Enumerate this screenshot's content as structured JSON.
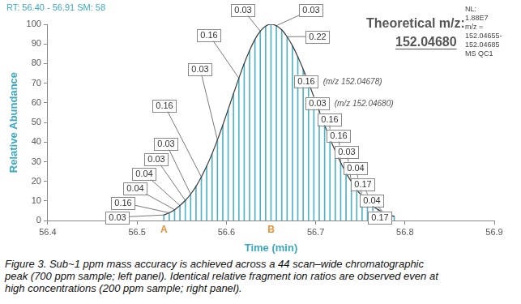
{
  "chart_data": {
    "type": "line",
    "header": "RT: 56.40 - 56.91 SM: 58",
    "title": "Theoretical m/z:",
    "subtitle": "152.04680",
    "info": [
      "NL:",
      "1.88E7",
      "m/z =",
      "152.04655-",
      "152.04685",
      "MS QC1"
    ],
    "x_label": "Time (min)",
    "y_label": "Relative Abundance",
    "x": [
      56.53,
      56.536,
      56.542,
      56.548,
      56.554,
      56.56,
      56.566,
      56.572,
      56.578,
      56.584,
      56.59,
      56.596,
      56.602,
      56.608,
      56.614,
      56.62,
      56.626,
      56.632,
      56.638,
      56.644,
      56.65,
      56.656,
      56.662,
      56.668,
      56.674,
      56.68,
      56.686,
      56.692,
      56.698,
      56.704,
      56.71,
      56.716,
      56.722,
      56.728,
      56.734,
      56.74,
      56.746,
      56.752,
      56.758,
      56.764,
      56.77,
      56.776,
      56.782,
      56.788
    ],
    "values": [
      2.9,
      4.0,
      5.6,
      7.7,
      10.3,
      13.5,
      17.5,
      22.3,
      27.8,
      34.1,
      41.1,
      48.7,
      56.6,
      64.7,
      72.6,
      80.1,
      86.7,
      92.3,
      96.5,
      99.1,
      100,
      99.3,
      97.2,
      93.7,
      89.1,
      83.5,
      77.2,
      70.3,
      63.1,
      55.8,
      48.7,
      41.8,
      35.5,
      29.6,
      24.4,
      19.8,
      15.8,
      12.5,
      9.7,
      7.4,
      5.6,
      4.2,
      3.1,
      2.2
    ],
    "color": "#4fb3c8",
    "xlim": [
      56.4,
      56.9
    ],
    "xticks": [
      56.4,
      56.5,
      56.6,
      56.7,
      56.8,
      56.9
    ],
    "ylim": [
      0,
      100
    ],
    "yticks": [
      0,
      10,
      20,
      30,
      40,
      50,
      60,
      70,
      80,
      90,
      100
    ],
    "grid": false,
    "markers": [
      {
        "label": "A",
        "x": 56.53
      },
      {
        "label": "B",
        "x": 56.65
      }
    ],
    "annotations": [
      {
        "label": "0.03",
        "x": 56.53
      },
      {
        "label": "0.16",
        "x": 56.536
      },
      {
        "label": "0.04",
        "x": 56.542
      },
      {
        "label": "0.04",
        "x": 56.548
      },
      {
        "label": "0.03",
        "x": 56.554
      },
      {
        "label": "0.03",
        "x": 56.56
      },
      {
        "label": "0.16",
        "x": 56.572
      },
      {
        "label": "0.03",
        "x": 56.59
      },
      {
        "label": "0.16",
        "x": 56.614
      },
      {
        "label": "0.03",
        "x": 56.638
      },
      {
        "label": "0.03",
        "x": 56.656
      },
      {
        "label": "0.22",
        "x": 56.668
      },
      {
        "label": "0.16",
        "x": 56.686,
        "note": "(m/z 152.04678)"
      },
      {
        "label": "0.03",
        "x": 56.698,
        "note": "(m/z 152.04680)"
      },
      {
        "label": "0.16",
        "x": 56.716
      },
      {
        "label": "0.16",
        "x": 56.728
      },
      {
        "label": "0.03",
        "x": 56.74
      },
      {
        "label": "0.04",
        "x": 56.752
      },
      {
        "label": "0.17",
        "x": 56.764
      },
      {
        "label": "0.04",
        "x": 56.776
      },
      {
        "label": "0.17",
        "x": 56.788
      }
    ],
    "caption": [
      "Figure 3. Sub~1 ppm mass accuracy is achieved across a 44 scan–wide chromatographic",
      "peak (700 ppm sample; left panel). Identical relative fragment ion ratios are observed even at",
      "high concentrations (200 ppm sample; right panel)."
    ]
  }
}
